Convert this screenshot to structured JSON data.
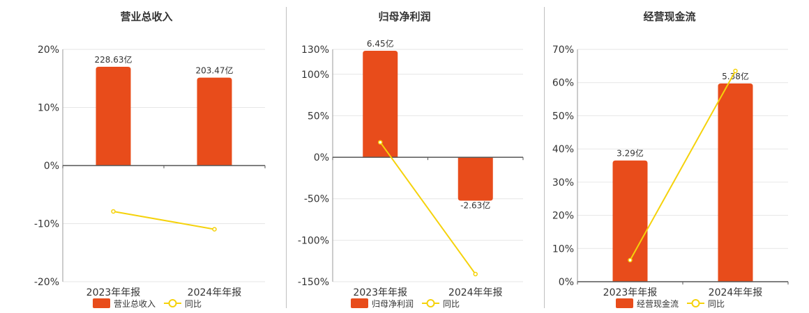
{
  "chart_data": [
    {
      "type": "bar",
      "title": "营业总收入",
      "categories": [
        "2023年年报",
        "2024年年报"
      ],
      "bar_series": {
        "name": "营业总收入",
        "values": [
          228.63,
          203.47
        ],
        "labels": [
          "228.63亿",
          "203.47亿"
        ]
      },
      "line_series": {
        "name": "同比",
        "values": [
          -7.9,
          -10.97
        ]
      },
      "y_axis": {
        "ticks": [
          "20%",
          "10%",
          "0%",
          "-10%",
          "-20%"
        ],
        "ylim": [
          -20,
          20
        ]
      },
      "grid": true,
      "legend": "bottom"
    },
    {
      "type": "bar",
      "title": "归母净利润",
      "categories": [
        "2023年年报",
        "2024年年报"
      ],
      "bar_series": {
        "name": "归母净利润",
        "values": [
          6.45,
          -2.63
        ],
        "labels": [
          "6.45亿",
          "-2.63亿"
        ]
      },
      "line_series": {
        "name": "同比",
        "values": [
          18,
          -140.8
        ]
      },
      "y_axis": {
        "ticks": [
          "130%",
          "100%",
          "50%",
          "0%",
          "-50%",
          "-100%",
          "-150%"
        ],
        "ylim": [
          -150,
          130
        ]
      },
      "grid": true,
      "legend": "bottom"
    },
    {
      "type": "bar",
      "title": "经营现金流",
      "categories": [
        "2023年年报",
        "2024年年报"
      ],
      "bar_series": {
        "name": "经营现金流",
        "values": [
          3.29,
          5.38
        ],
        "labels": [
          "3.29亿",
          "5.38亿"
        ]
      },
      "line_series": {
        "name": "同比",
        "values": [
          6.5,
          63.5
        ]
      },
      "y_axis": {
        "ticks": [
          "70%",
          "60%",
          "50%",
          "40%",
          "30%",
          "20%",
          "10%",
          "0%"
        ],
        "ylim": [
          0,
          70
        ]
      },
      "grid": true,
      "legend": "bottom"
    }
  ],
  "colors": {
    "bar": "#e84c1b",
    "line": "#f5d20b",
    "grid": "#e6e6e6",
    "axis": "#555555",
    "divider": "#bfbfbf",
    "text": "#333333"
  }
}
